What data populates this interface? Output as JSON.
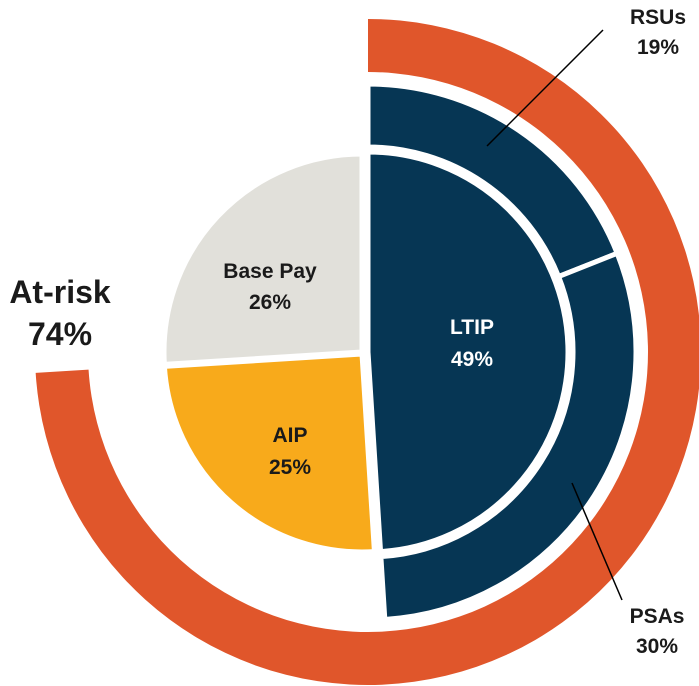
{
  "chart_data": {
    "type": "pie",
    "title": "",
    "inner": [
      {
        "label": "LTIP",
        "value": 49,
        "value_text": "49%",
        "color": "#063654"
      },
      {
        "label": "AIP",
        "value": 25,
        "value_text": "25%",
        "color": "#f8aa1b"
      },
      {
        "label": "Base Pay",
        "value": 26,
        "value_text": "26%",
        "color": "#e1e0da"
      }
    ],
    "middle": [
      {
        "label": "RSUs",
        "value": 19,
        "value_text": "19%",
        "color": "#063654"
      },
      {
        "label": "PSAs",
        "value": 30,
        "value_text": "30%",
        "color": "#063654"
      }
    ],
    "outer": {
      "label": "At-risk",
      "value": 74,
      "value_text": "74%",
      "color": "#e0562b"
    }
  }
}
